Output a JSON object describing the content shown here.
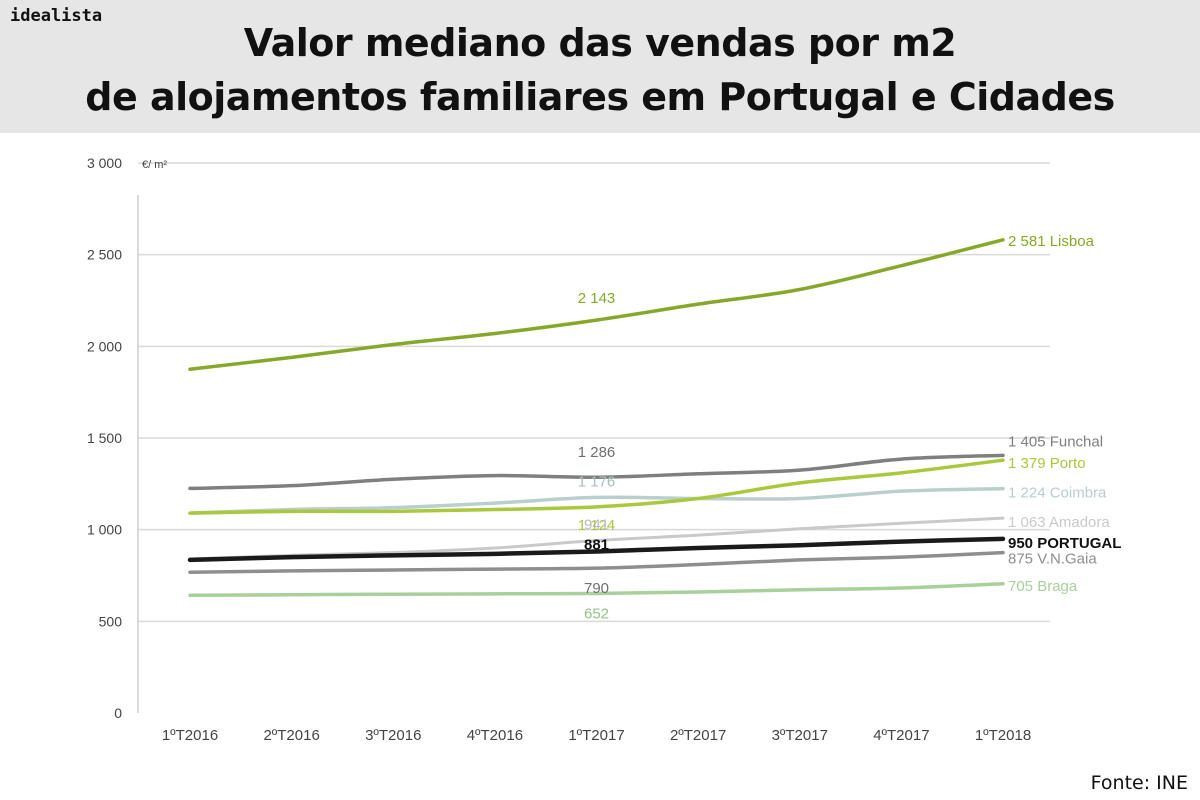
{
  "brand": "idealista",
  "title_line1": "Valor mediano das vendas por m2",
  "title_line2": "de alojamentos familiares em Portugal e Cidades",
  "source": "Fonte: INE",
  "chart_data": {
    "type": "line",
    "unit_label": "€/ m²",
    "x": [
      "1ºT2016",
      "2ºT2016",
      "3ºT2016",
      "4ºT2016",
      "1ºT2017",
      "2ºT2017",
      "3ºT2017",
      "4ºT2017",
      "1ºT2018"
    ],
    "ylim": [
      0,
      3000
    ],
    "yticks": [
      0,
      500,
      1000,
      1500,
      2000,
      2500,
      3000
    ],
    "ytick_labels": [
      "0",
      "500",
      "1 000",
      "1 500",
      "2 000",
      "2 500",
      "3 000"
    ],
    "grid": true,
    "series": [
      {
        "name": "Lisboa",
        "color": "#86a82a",
        "width": 3.5,
        "values": [
          1875,
          1940,
          2010,
          2070,
          2143,
          2230,
          2310,
          2440,
          2581
        ],
        "end_label": "2 581 Lisboa",
        "mid_label": "2 143",
        "mid_color": "#86a82a"
      },
      {
        "name": "Funchal",
        "color": "#7f7f7f",
        "width": 3.5,
        "values": [
          1225,
          1240,
          1275,
          1295,
          1286,
          1305,
          1325,
          1385,
          1405
        ],
        "end_label": "1 405 Funchal",
        "mid_label": "1 286",
        "mid_color": "#6f6f6f"
      },
      {
        "name": "Porto",
        "color": "#a9c83c",
        "width": 3.5,
        "values": [
          1090,
          1100,
          1100,
          1110,
          1124,
          1170,
          1255,
          1310,
          1379
        ],
        "end_label": "1 379 Porto",
        "mid_label": "1 124",
        "mid_color": "#a9c83c"
      },
      {
        "name": "Coimbra",
        "color": "#b8cfcd",
        "width": 3.5,
        "values": [
          1090,
          1110,
          1120,
          1145,
          1176,
          1170,
          1170,
          1210,
          1224
        ],
        "end_label": "1 224 Coimbra",
        "mid_label": "1 176",
        "mid_color": "#a6c1bf"
      },
      {
        "name": "Amadora",
        "color": "#c9c9c9",
        "width": 3,
        "values": [
          840,
          860,
          875,
          900,
          941,
          970,
          1005,
          1035,
          1063
        ],
        "end_label": "1 063 Amadora",
        "mid_label": "941",
        "mid_color": "#bbbbbb"
      },
      {
        "name": "PORTUGAL",
        "color": "#1a1a1a",
        "width": 4.5,
        "values": [
          835,
          850,
          860,
          868,
          881,
          900,
          915,
          935,
          950
        ],
        "end_label": "950 PORTUGAL",
        "mid_label": "881",
        "mid_color": "#111111"
      },
      {
        "name": "V.N.Gaia",
        "color": "#8e8e8e",
        "width": 3.5,
        "values": [
          768,
          775,
          780,
          785,
          790,
          810,
          835,
          850,
          875
        ],
        "end_label": "875 V.N.Gaia",
        "mid_label": "790",
        "mid_color": "#6f6f6f"
      },
      {
        "name": "Braga",
        "color": "#a7d09b",
        "width": 3.5,
        "values": [
          642,
          645,
          648,
          650,
          652,
          660,
          672,
          682,
          705
        ],
        "end_label": "705 Braga",
        "mid_label": "652",
        "mid_color": "#92c485"
      }
    ]
  }
}
